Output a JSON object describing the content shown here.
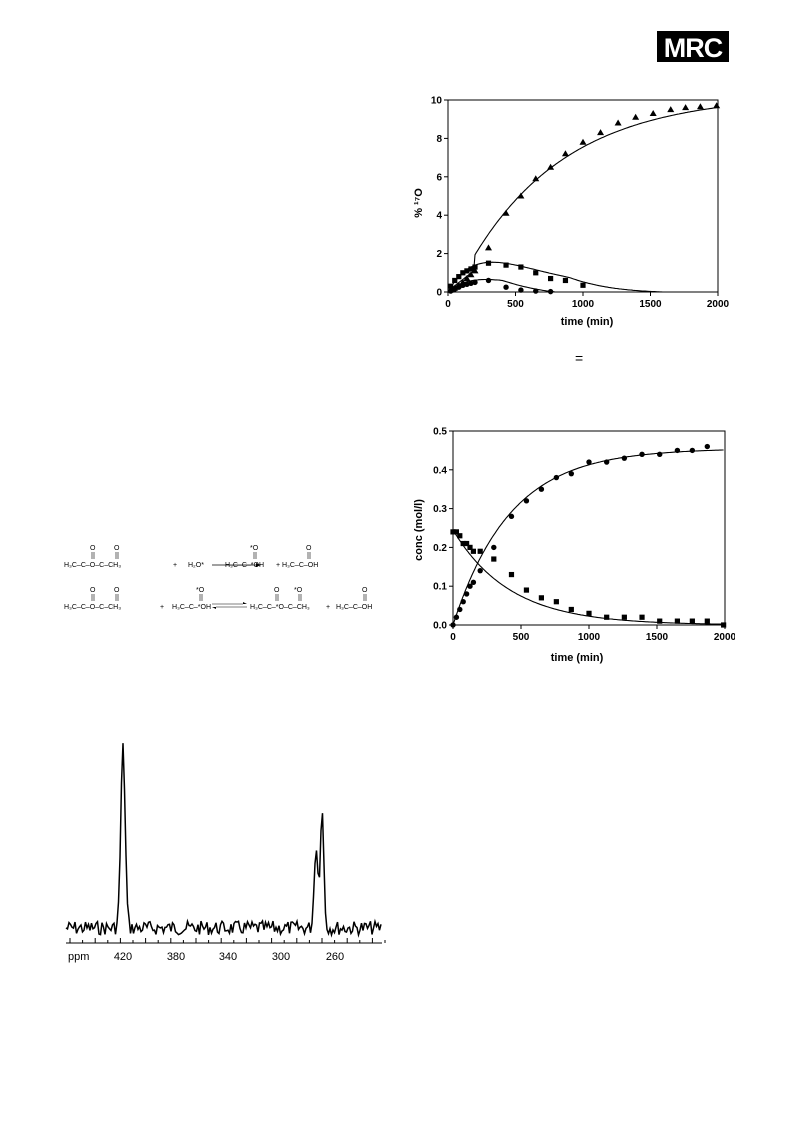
{
  "header": {
    "logo_text": "MRC"
  },
  "chart_data": [
    {
      "type": "scatter",
      "xlabel": "time (min)",
      "ylabel": "% ¹⁷O",
      "xlim": [
        0,
        2000
      ],
      "ylim": [
        0,
        10
      ],
      "xticks": [
        "0",
        "500",
        "1000",
        "1500",
        "2000"
      ],
      "yticks": [
        "0",
        "2",
        "4",
        "6",
        "8",
        "10"
      ],
      "series": [
        {
          "marker": "triangle",
          "x": [
            20,
            50,
            80,
            110,
            140,
            170,
            200,
            300,
            430,
            540,
            650,
            760,
            870,
            1000,
            1130,
            1260,
            1390,
            1520,
            1650,
            1760,
            1870,
            1990
          ],
          "y": [
            0.1,
            0.2,
            0.35,
            0.5,
            0.7,
            0.9,
            1.1,
            2.3,
            4.1,
            5.0,
            5.9,
            6.5,
            7.2,
            7.8,
            8.3,
            8.8,
            9.1,
            9.3,
            9.5,
            9.6,
            9.65,
            9.7
          ]
        },
        {
          "marker": "square",
          "x": [
            20,
            50,
            80,
            110,
            140,
            170,
            200,
            300,
            430,
            540,
            650,
            760,
            870,
            1000
          ],
          "y": [
            0.3,
            0.6,
            0.8,
            1.0,
            1.1,
            1.2,
            1.3,
            1.5,
            1.4,
            1.3,
            1.0,
            0.7,
            0.6,
            0.35
          ]
        },
        {
          "marker": "circle",
          "x": [
            20,
            50,
            80,
            110,
            140,
            170,
            200,
            300,
            430,
            540,
            650,
            760
          ],
          "y": [
            0.05,
            0.15,
            0.25,
            0.35,
            0.4,
            0.45,
            0.5,
            0.6,
            0.25,
            0.1,
            0.05,
            0.02
          ]
        }
      ]
    },
    {
      "type": "scatter",
      "xlabel": "time (min)",
      "ylabel": "conc (mol/l)",
      "xlim": [
        0,
        2000
      ],
      "ylim": [
        0,
        0.5
      ],
      "xticks": [
        "0",
        "500",
        "1000",
        "1500",
        "2000"
      ],
      "yticks": [
        "0.0",
        "0.1",
        "0.2",
        "0.3",
        "0.4",
        "0.5"
      ],
      "series": [
        {
          "marker": "circle",
          "x": [
            0,
            25,
            50,
            75,
            100,
            125,
            150,
            200,
            300,
            430,
            540,
            650,
            760,
            870,
            1000,
            1130,
            1260,
            1390,
            1520,
            1650,
            1760,
            1870
          ],
          "y": [
            0.0,
            0.02,
            0.04,
            0.06,
            0.08,
            0.1,
            0.11,
            0.14,
            0.2,
            0.28,
            0.32,
            0.35,
            0.38,
            0.39,
            0.42,
            0.42,
            0.43,
            0.44,
            0.44,
            0.45,
            0.45,
            0.46
          ]
        },
        {
          "marker": "square",
          "x": [
            0,
            25,
            50,
            75,
            100,
            125,
            150,
            200,
            300,
            430,
            540,
            650,
            760,
            870,
            1000,
            1130,
            1260,
            1390,
            1520,
            1650,
            1760,
            1870,
            1990
          ],
          "y": [
            0.24,
            0.24,
            0.23,
            0.21,
            0.21,
            0.2,
            0.19,
            0.19,
            0.17,
            0.13,
            0.09,
            0.07,
            0.06,
            0.04,
            0.03,
            0.02,
            0.02,
            0.02,
            0.01,
            0.01,
            0.01,
            0.01,
            0.0
          ]
        }
      ]
    }
  ],
  "scheme": {
    "row1": {
      "reactant": "H₃C–C–O–C–CH₃",
      "plus1": "+",
      "water": "H₂O*",
      "product1": "H₃C–C–*OH",
      "plus2": "+",
      "product2": "H₃C–C–OH"
    },
    "row2": {
      "reactant": "H₃C–C–O–C–CH₃",
      "plus1": "+",
      "acid": "H₃C–C–*OH",
      "product1": "H₃C–C–*O–C–CH₃",
      "plus2": "+",
      "product2": "H₃C–C–OH"
    },
    "carbonyl_O": "O",
    "labeled_O": "*O"
  },
  "nmr": {
    "axis_label": "ppm",
    "ticks": [
      "420",
      "380",
      "340",
      "300",
      "260"
    ]
  },
  "stray_mark": "="
}
